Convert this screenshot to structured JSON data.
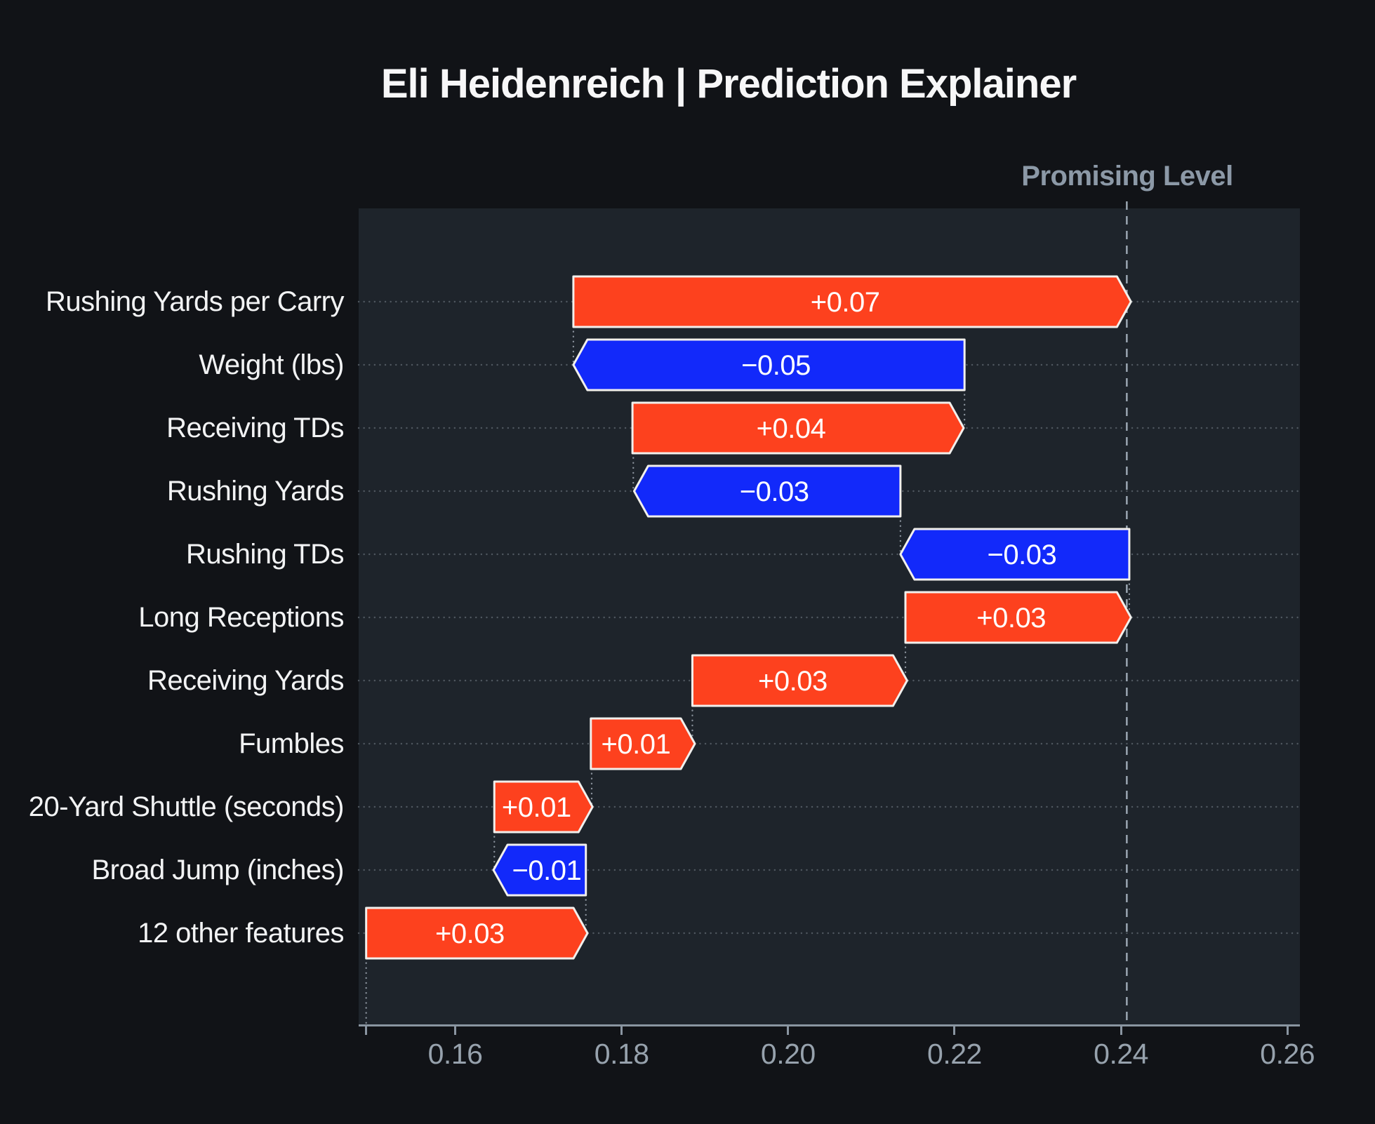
{
  "page": {
    "title": "Eli Heidenreich | Prediction Explainer",
    "background": "#111317"
  },
  "promising": {
    "label": "Promising Level"
  },
  "colors": {
    "positive": "#fd411e",
    "negative": "#1229fa",
    "page_background": "#111317",
    "plot_background": "#1e242b",
    "bar_border": "#f1efec",
    "axis_line": "#8a95a1",
    "tick_text": "#97a2ad",
    "feature_text": "#f2f3f4",
    "title_text": "#f7f7f8",
    "promising_text": "#8c99a7",
    "promising_line": "#9fabb6",
    "gridline": "#5d656e",
    "connector": "#89919b",
    "bar_value_text": "#ffffff"
  },
  "chart_data": {
    "type": "bar",
    "subtype": "waterfall-explainer",
    "orientation": "horizontal",
    "title": "Eli Heidenreich | Prediction Explainer",
    "xlabel": "",
    "ylabel": "",
    "xlim": [
      0.1484,
      0.2615
    ],
    "x_ticks": [
      0.16,
      0.18,
      0.2,
      0.22,
      0.24,
      0.26
    ],
    "x_tick_labels": [
      "0.16",
      "0.18",
      "0.20",
      "0.22",
      "0.24",
      "0.26"
    ],
    "base_tick": 0.1493,
    "base_value": 0.1493,
    "final_value": 0.2407,
    "grid": "dotted-horizontal-per-row",
    "legend": "none",
    "reference_line": {
      "label": "Promising Level",
      "value": 0.2407,
      "style": "dashed"
    },
    "features": [
      {
        "label": "Rushing Yards per Carry",
        "value_label": "+0.07",
        "sign": "positive",
        "from": 0.1742,
        "to": 0.2412,
        "tip": "right"
      },
      {
        "label": "Weight (lbs)",
        "value_label": "−0.05",
        "sign": "negative",
        "from": 0.1742,
        "to": 0.2212,
        "tip": "left"
      },
      {
        "label": "Receiving TDs",
        "value_label": "+0.04",
        "sign": "positive",
        "from": 0.1813,
        "to": 0.2211,
        "tip": "right"
      },
      {
        "label": "Rushing Yards",
        "value_label": "−0.03",
        "sign": "negative",
        "from": 0.1815,
        "to": 0.2135,
        "tip": "left"
      },
      {
        "label": "Rushing TDs",
        "value_label": "−0.03",
        "sign": "negative",
        "from": 0.2135,
        "to": 0.241,
        "tip": "left"
      },
      {
        "label": "Long Receptions",
        "value_label": "+0.03",
        "sign": "positive",
        "from": 0.2141,
        "to": 0.2412,
        "tip": "right"
      },
      {
        "label": "Receiving Yards",
        "value_label": "+0.03",
        "sign": "positive",
        "from": 0.1885,
        "to": 0.2143,
        "tip": "right"
      },
      {
        "label": "Fumbles",
        "value_label": "+0.01",
        "sign": "positive",
        "from": 0.1763,
        "to": 0.1888,
        "tip": "right"
      },
      {
        "label": "20-Yard Shuttle (seconds)",
        "value_label": "+0.01",
        "sign": "positive",
        "from": 0.1647,
        "to": 0.1765,
        "tip": "right"
      },
      {
        "label": "Broad Jump (inches)",
        "value_label": "−0.01",
        "sign": "negative",
        "from": 0.1646,
        "to": 0.1757,
        "tip": "left"
      },
      {
        "label": "12 other features",
        "value_label": "+0.03",
        "sign": "positive",
        "from": 0.1493,
        "to": 0.1759,
        "tip": "right"
      }
    ],
    "connectors": [
      0.1742,
      0.2212,
      0.1814,
      0.2135,
      0.241,
      0.2141,
      0.1885,
      0.1764,
      0.1647,
      0.1757,
      0.1493
    ]
  }
}
